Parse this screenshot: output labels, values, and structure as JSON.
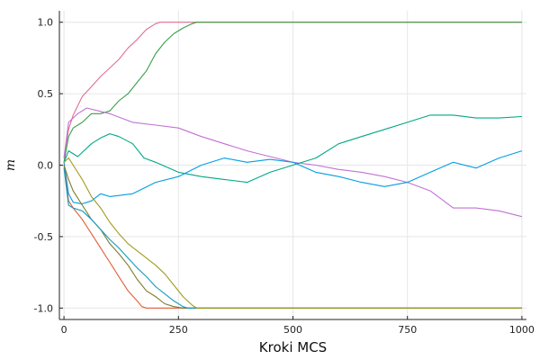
{
  "chart_data": {
    "type": "line",
    "xlabel": "Kroki MCS",
    "ylabel": "m",
    "xlim": [
      -10,
      1010
    ],
    "ylim": [
      -1.08,
      1.08
    ],
    "xticks": [
      0,
      250,
      500,
      750,
      1000
    ],
    "xtick_labels": [
      "0",
      "250",
      "500",
      "750",
      "1000"
    ],
    "yticks": [
      -1.0,
      -0.5,
      0.0,
      0.5,
      1.0
    ],
    "ytick_labels": [
      "-1.0",
      "-0.5",
      "0.0",
      "0.5",
      "1.0"
    ],
    "grid": true,
    "legend": "none",
    "series": [
      {
        "color": "#e26f8f",
        "x": [
          0,
          10,
          20,
          40,
          60,
          80,
          100,
          120,
          140,
          160,
          180,
          200,
          210,
          220,
          1000
        ],
        "y": [
          0.05,
          0.25,
          0.35,
          0.48,
          0.55,
          0.62,
          0.68,
          0.74,
          0.82,
          0.88,
          0.95,
          0.99,
          1.0,
          1.0,
          1.0
        ]
      },
      {
        "color": "#3a9e4a",
        "x": [
          0,
          10,
          20,
          40,
          60,
          80,
          100,
          120,
          140,
          160,
          180,
          200,
          220,
          240,
          260,
          280,
          290,
          1000
        ],
        "y": [
          0.02,
          0.2,
          0.26,
          0.3,
          0.36,
          0.36,
          0.38,
          0.45,
          0.5,
          0.58,
          0.66,
          0.78,
          0.86,
          0.92,
          0.96,
          0.99,
          1.0,
          1.0
        ]
      },
      {
        "color": "#c271d2",
        "x": [
          0,
          10,
          30,
          50,
          75,
          100,
          150,
          200,
          250,
          300,
          350,
          400,
          450,
          500,
          550,
          600,
          650,
          700,
          750,
          800,
          850,
          900,
          950,
          1000
        ],
        "y": [
          0.05,
          0.3,
          0.36,
          0.4,
          0.38,
          0.36,
          0.3,
          0.28,
          0.26,
          0.2,
          0.15,
          0.1,
          0.06,
          0.02,
          0.0,
          -0.03,
          -0.05,
          -0.08,
          -0.12,
          -0.18,
          -0.3,
          -0.3,
          -0.32,
          -0.36
        ]
      },
      {
        "color": "#00a886",
        "x": [
          0,
          10,
          30,
          60,
          80,
          100,
          120,
          150,
          175,
          200,
          250,
          300,
          350,
          400,
          450,
          500,
          550,
          600,
          650,
          700,
          750,
          800,
          850,
          900,
          950,
          1000
        ],
        "y": [
          0.02,
          0.1,
          0.06,
          0.15,
          0.19,
          0.22,
          0.2,
          0.15,
          0.05,
          0.02,
          -0.05,
          -0.08,
          -0.1,
          -0.12,
          -0.05,
          0.0,
          0.05,
          0.15,
          0.2,
          0.25,
          0.3,
          0.35,
          0.35,
          0.33,
          0.33,
          0.34
        ]
      },
      {
        "color": "#009ee2",
        "x": [
          0,
          10,
          20,
          40,
          60,
          80,
          100,
          150,
          200,
          250,
          300,
          350,
          400,
          450,
          500,
          550,
          600,
          650,
          700,
          750,
          800,
          850,
          900,
          950,
          1000
        ],
        "y": [
          0.02,
          -0.2,
          -0.26,
          -0.27,
          -0.25,
          -0.2,
          -0.22,
          -0.2,
          -0.12,
          -0.08,
          0.0,
          0.05,
          0.02,
          0.04,
          0.02,
          -0.05,
          -0.08,
          -0.12,
          -0.15,
          -0.12,
          -0.05,
          0.02,
          -0.02,
          0.05,
          0.1
        ]
      },
      {
        "color": "#e15d3a",
        "x": [
          0,
          10,
          20,
          40,
          60,
          80,
          100,
          120,
          140,
          160,
          170,
          180,
          200,
          1000
        ],
        "y": [
          0.0,
          -0.25,
          -0.3,
          -0.38,
          -0.48,
          -0.58,
          -0.68,
          -0.78,
          -0.88,
          -0.95,
          -0.99,
          -1.0,
          -1.0,
          -1.0
        ]
      },
      {
        "color": "#7d7a2c",
        "x": [
          0,
          10,
          20,
          40,
          60,
          80,
          100,
          120,
          140,
          160,
          180,
          200,
          220,
          240,
          260,
          1000
        ],
        "y": [
          0.0,
          -0.1,
          -0.18,
          -0.28,
          -0.38,
          -0.45,
          -0.55,
          -0.62,
          -0.7,
          -0.8,
          -0.88,
          -0.92,
          -0.97,
          -0.99,
          -1.0,
          -1.0
        ]
      },
      {
        "color": "#129bbd",
        "x": [
          0,
          10,
          20,
          40,
          60,
          80,
          100,
          120,
          140,
          160,
          180,
          200,
          220,
          240,
          260,
          270,
          1000
        ],
        "y": [
          -0.02,
          -0.28,
          -0.3,
          -0.32,
          -0.38,
          -0.45,
          -0.52,
          -0.58,
          -0.65,
          -0.72,
          -0.78,
          -0.85,
          -0.9,
          -0.95,
          -0.99,
          -1.0,
          -1.0
        ]
      },
      {
        "color": "#a29b1d",
        "x": [
          0,
          10,
          20,
          40,
          60,
          80,
          100,
          120,
          140,
          160,
          180,
          200,
          220,
          240,
          260,
          280,
          290,
          1000
        ],
        "y": [
          0.02,
          0.05,
          0.0,
          -0.1,
          -0.22,
          -0.3,
          -0.4,
          -0.48,
          -0.55,
          -0.6,
          -0.65,
          -0.7,
          -0.76,
          -0.84,
          -0.92,
          -0.98,
          -1.0,
          -1.0
        ]
      }
    ]
  }
}
